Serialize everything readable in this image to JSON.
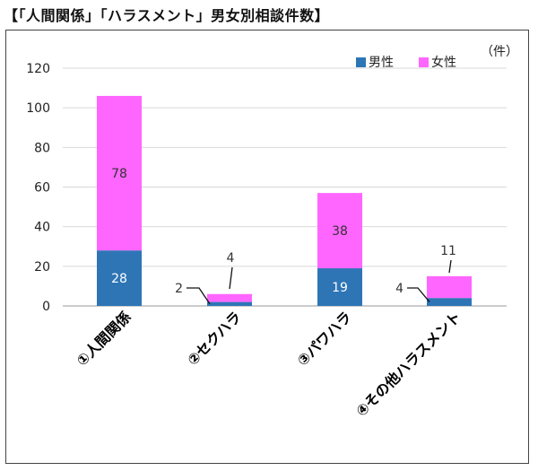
{
  "title": "【「人間関係」「ハラスメント」男女別相談件数】",
  "unit_label": "（件）",
  "chart_data": {
    "type": "bar",
    "stacked": true,
    "categories": [
      "①人間関係",
      "②セクハラ",
      "③パワハラ",
      "④その他ハラスメント"
    ],
    "series": [
      {
        "name": "男性",
        "color": "#2E75B6",
        "values": [
          28,
          2,
          19,
          4
        ]
      },
      {
        "name": "女性",
        "color": "#FF66FF",
        "values": [
          78,
          4,
          38,
          11
        ]
      }
    ],
    "ylim": [
      0,
      120
    ],
    "yticks": [
      0,
      20,
      40,
      60,
      80,
      100,
      120
    ],
    "grid": true,
    "legend_position": "top-right"
  }
}
